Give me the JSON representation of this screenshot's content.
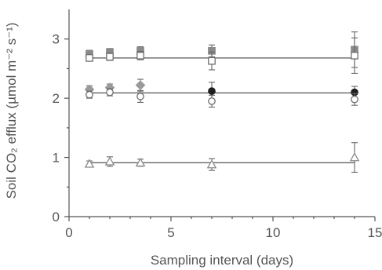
{
  "chart_data": {
    "type": "scatter",
    "xlabel": "Sampling interval (days)",
    "ylabel": "Soil CO₂ efflux (µmol m⁻² s⁻¹)",
    "xlim": [
      0,
      15
    ],
    "ylim": [
      0,
      3.5
    ],
    "xticks": [
      0,
      5,
      10,
      15
    ],
    "yticks": [
      0,
      1,
      2,
      3
    ],
    "grid": false,
    "fit_lines": [
      {
        "x": [
          1,
          14
        ],
        "y": [
          2.68,
          2.68
        ]
      },
      {
        "x": [
          1,
          14
        ],
        "y": [
          2.09,
          2.09
        ]
      },
      {
        "x": [
          1,
          14
        ],
        "y": [
          0.91,
          0.91
        ]
      }
    ],
    "series": [
      {
        "marker": "square-filled",
        "color": "#8a8a8a",
        "x": [
          1,
          2,
          3.5,
          7,
          14
        ],
        "y": [
          2.75,
          2.78,
          2.8,
          2.8,
          2.82
        ],
        "err": [
          0.06,
          0.06,
          0.07,
          0.1,
          0.3
        ]
      },
      {
        "marker": "square-open",
        "color": "#6e6e6e",
        "x": [
          1,
          2,
          3.5,
          7,
          14
        ],
        "y": [
          2.68,
          2.7,
          2.72,
          2.63,
          2.72
        ],
        "err": [
          0.05,
          0.06,
          0.07,
          0.15,
          0.3
        ]
      },
      {
        "marker": "diamond-filled",
        "color": "#9a9a9a",
        "x": [
          1,
          2,
          3.5
        ],
        "y": [
          2.15,
          2.18,
          2.22
        ],
        "err": [
          0.06,
          0.06,
          0.1
        ]
      },
      {
        "marker": "circle-filled",
        "color": "#1e1e1e",
        "x": [
          7,
          14
        ],
        "y": [
          2.12,
          2.1
        ],
        "err": [
          0.15,
          0.1
        ]
      },
      {
        "marker": "circle-open",
        "color": "#6e6e6e",
        "x": [
          1,
          2,
          3.5,
          7,
          14
        ],
        "y": [
          2.06,
          2.1,
          2.03,
          1.95,
          1.98
        ],
        "err": [
          0.06,
          0.06,
          0.1,
          0.1,
          0.1
        ]
      },
      {
        "marker": "triangle-open",
        "color": "#8a8a8a",
        "x": [
          1,
          2,
          3.5,
          7,
          14
        ],
        "y": [
          0.89,
          0.93,
          0.91,
          0.88,
          1.0
        ],
        "err": [
          0.05,
          0.08,
          0.06,
          0.1,
          0.25
        ]
      }
    ]
  }
}
